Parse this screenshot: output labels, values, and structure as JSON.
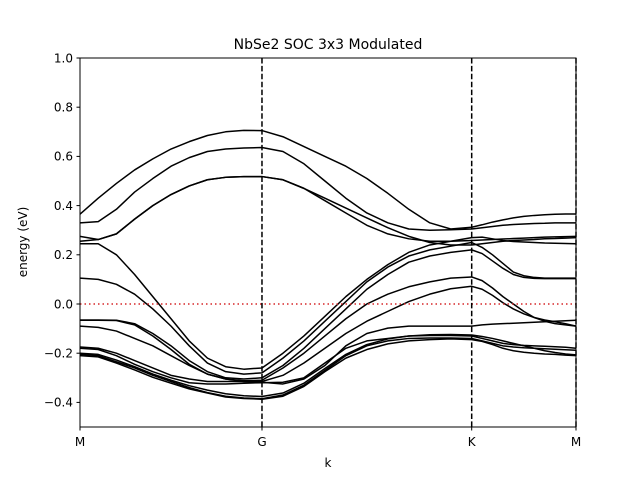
{
  "chart_data": {
    "type": "line",
    "title": "NbSe2 SOC 3x3 Modulated",
    "xlabel": "k",
    "ylabel": "energy (eV)",
    "xlim": [
      0,
      1
    ],
    "ylim": [
      -0.5,
      1.0
    ],
    "xticks": [
      {
        "label": "M",
        "x": 0.0
      },
      {
        "label": "G",
        "x": 0.3669
      },
      {
        "label": "K",
        "x": 0.7897
      },
      {
        "label": "M",
        "x": 1.0
      }
    ],
    "yticks": [
      -0.4,
      -0.2,
      0.0,
      0.2,
      0.4,
      0.6,
      0.8,
      1.0
    ],
    "ytick_labels": [
      "−0.4",
      "−0.2",
      "0.0",
      "0.2",
      "0.4",
      "0.6",
      "0.8",
      "1.0"
    ],
    "fermi_level": 0.0,
    "colors": {
      "bands": "#000000",
      "fermi": "#d62728",
      "vlines": "#000000"
    },
    "x": [
      0.0,
      0.0367,
      0.0734,
      0.1101,
      0.1468,
      0.1835,
      0.2202,
      0.2569,
      0.2936,
      0.3303,
      0.3669,
      0.4092,
      0.4515,
      0.4938,
      0.536,
      0.5783,
      0.6206,
      0.6629,
      0.7052,
      0.7474,
      0.7897,
      0.8107,
      0.8317,
      0.8527,
      0.8737,
      0.8947,
      0.9158,
      0.9368,
      0.9578,
      0.9789,
      1.0
    ],
    "series": [
      {
        "values": [
          0.365,
          0.43,
          0.49,
          0.545,
          0.59,
          0.63,
          0.66,
          0.685,
          0.7,
          0.706,
          0.705,
          0.68,
          0.64,
          0.6,
          0.56,
          0.51,
          0.45,
          0.385,
          0.33,
          0.305,
          0.312,
          0.322,
          0.333,
          0.342,
          0.35,
          0.356,
          0.36,
          0.363,
          0.365,
          0.366,
          0.366
        ]
      },
      {
        "values": [
          0.33,
          0.335,
          0.385,
          0.455,
          0.51,
          0.56,
          0.595,
          0.62,
          0.63,
          0.634,
          0.636,
          0.62,
          0.57,
          0.5,
          0.43,
          0.37,
          0.33,
          0.305,
          0.3,
          0.302,
          0.305,
          0.31,
          0.315,
          0.32,
          0.323,
          0.325,
          0.327,
          0.328,
          0.33,
          0.33,
          0.33
        ]
      },
      {
        "values": [
          0.275,
          0.262,
          0.285,
          0.345,
          0.4,
          0.445,
          0.48,
          0.505,
          0.515,
          0.518,
          0.518,
          0.505,
          0.47,
          0.42,
          0.37,
          0.32,
          0.285,
          0.265,
          0.255,
          0.255,
          0.258,
          0.26,
          0.262,
          0.264,
          0.266,
          0.268,
          0.27,
          0.272,
          0.273,
          0.274,
          0.275
        ]
      },
      {
        "values": [
          0.255,
          0.262,
          0.285,
          0.345,
          0.4,
          0.445,
          0.48,
          0.505,
          0.515,
          0.518,
          0.518,
          0.505,
          0.47,
          0.43,
          0.39,
          0.35,
          0.31,
          0.275,
          0.25,
          0.24,
          0.24,
          0.245,
          0.25,
          0.255,
          0.258,
          0.26,
          0.262,
          0.265,
          0.266,
          0.268,
          0.27
        ]
      },
      {
        "values": [
          0.245,
          0.245,
          0.2,
          0.12,
          0.03,
          -0.06,
          -0.15,
          -0.22,
          -0.255,
          -0.265,
          -0.26,
          -0.2,
          -0.13,
          -0.05,
          0.03,
          0.1,
          0.16,
          0.21,
          0.24,
          0.255,
          0.27,
          0.272,
          0.265,
          0.258,
          0.254,
          0.252,
          0.25,
          0.248,
          0.247,
          0.246,
          0.245
        ]
      },
      {
        "values": [
          0.105,
          0.1,
          0.08,
          0.04,
          -0.02,
          -0.09,
          -0.17,
          -0.24,
          -0.275,
          -0.285,
          -0.28,
          -0.22,
          -0.15,
          -0.07,
          0.01,
          0.09,
          0.15,
          0.195,
          0.22,
          0.235,
          0.25,
          0.23,
          0.2,
          0.165,
          0.13,
          0.115,
          0.108,
          0.105,
          0.105,
          0.105,
          0.105
        ]
      },
      {
        "values": [
          -0.065,
          -0.065,
          -0.066,
          -0.08,
          -0.12,
          -0.17,
          -0.23,
          -0.275,
          -0.3,
          -0.305,
          -0.3,
          -0.25,
          -0.18,
          -0.1,
          -0.02,
          0.06,
          0.12,
          0.17,
          0.195,
          0.21,
          0.22,
          0.205,
          0.175,
          0.145,
          0.12,
          0.108,
          0.104,
          0.103,
          0.103,
          0.103,
          0.103
        ]
      },
      {
        "values": [
          -0.066,
          -0.066,
          -0.067,
          -0.085,
          -0.13,
          -0.185,
          -0.245,
          -0.285,
          -0.305,
          -0.312,
          -0.31,
          -0.26,
          -0.2,
          -0.13,
          -0.06,
          0.0,
          0.04,
          0.07,
          0.09,
          0.105,
          0.11,
          0.095,
          0.065,
          0.03,
          0.0,
          -0.03,
          -0.055,
          -0.07,
          -0.08,
          -0.085,
          -0.09
        ]
      },
      {
        "values": [
          -0.09,
          -0.095,
          -0.11,
          -0.14,
          -0.17,
          -0.21,
          -0.25,
          -0.285,
          -0.305,
          -0.315,
          -0.315,
          -0.29,
          -0.24,
          -0.18,
          -0.12,
          -0.07,
          -0.03,
          0.01,
          0.04,
          0.062,
          0.072,
          0.06,
          0.035,
          0.005,
          -0.02,
          -0.04,
          -0.055,
          -0.065,
          -0.072,
          -0.08,
          -0.09
        ]
      },
      {
        "values": [
          -0.175,
          -0.18,
          -0.2,
          -0.23,
          -0.26,
          -0.29,
          -0.305,
          -0.315,
          -0.315,
          -0.315,
          -0.318,
          -0.325,
          -0.305,
          -0.25,
          -0.17,
          -0.12,
          -0.098,
          -0.09,
          -0.09,
          -0.09,
          -0.09,
          -0.085,
          -0.082,
          -0.08,
          -0.078,
          -0.076,
          -0.074,
          -0.072,
          -0.07,
          -0.068,
          -0.066
        ]
      },
      {
        "values": [
          -0.18,
          -0.185,
          -0.21,
          -0.245,
          -0.275,
          -0.3,
          -0.32,
          -0.325,
          -0.325,
          -0.322,
          -0.32,
          -0.318,
          -0.3,
          -0.24,
          -0.18,
          -0.15,
          -0.14,
          -0.13,
          -0.128,
          -0.128,
          -0.13,
          -0.14,
          -0.15,
          -0.16,
          -0.165,
          -0.168,
          -0.17,
          -0.172,
          -0.174,
          -0.176,
          -0.18
        ]
      },
      {
        "values": [
          -0.205,
          -0.21,
          -0.235,
          -0.26,
          -0.29,
          -0.315,
          -0.34,
          -0.36,
          -0.375,
          -0.382,
          -0.385,
          -0.37,
          -0.33,
          -0.27,
          -0.21,
          -0.17,
          -0.15,
          -0.14,
          -0.138,
          -0.138,
          -0.14,
          -0.15,
          -0.16,
          -0.17,
          -0.175,
          -0.178,
          -0.18,
          -0.182,
          -0.184,
          -0.186,
          -0.188
        ]
      },
      {
        "values": [
          -0.21,
          -0.215,
          -0.24,
          -0.268,
          -0.298,
          -0.322,
          -0.345,
          -0.362,
          -0.378,
          -0.384,
          -0.387,
          -0.375,
          -0.335,
          -0.275,
          -0.22,
          -0.185,
          -0.162,
          -0.15,
          -0.145,
          -0.142,
          -0.145,
          -0.152,
          -0.165,
          -0.18,
          -0.19,
          -0.196,
          -0.2,
          -0.203,
          -0.205,
          -0.208,
          -0.21
        ]
      },
      {
        "values": [
          -0.2,
          -0.205,
          -0.228,
          -0.255,
          -0.285,
          -0.31,
          -0.332,
          -0.35,
          -0.365,
          -0.373,
          -0.376,
          -0.362,
          -0.322,
          -0.262,
          -0.205,
          -0.165,
          -0.142,
          -0.13,
          -0.125,
          -0.124,
          -0.126,
          -0.132,
          -0.14,
          -0.15,
          -0.16,
          -0.17,
          -0.18,
          -0.19,
          -0.197,
          -0.203,
          -0.207
        ]
      }
    ]
  }
}
